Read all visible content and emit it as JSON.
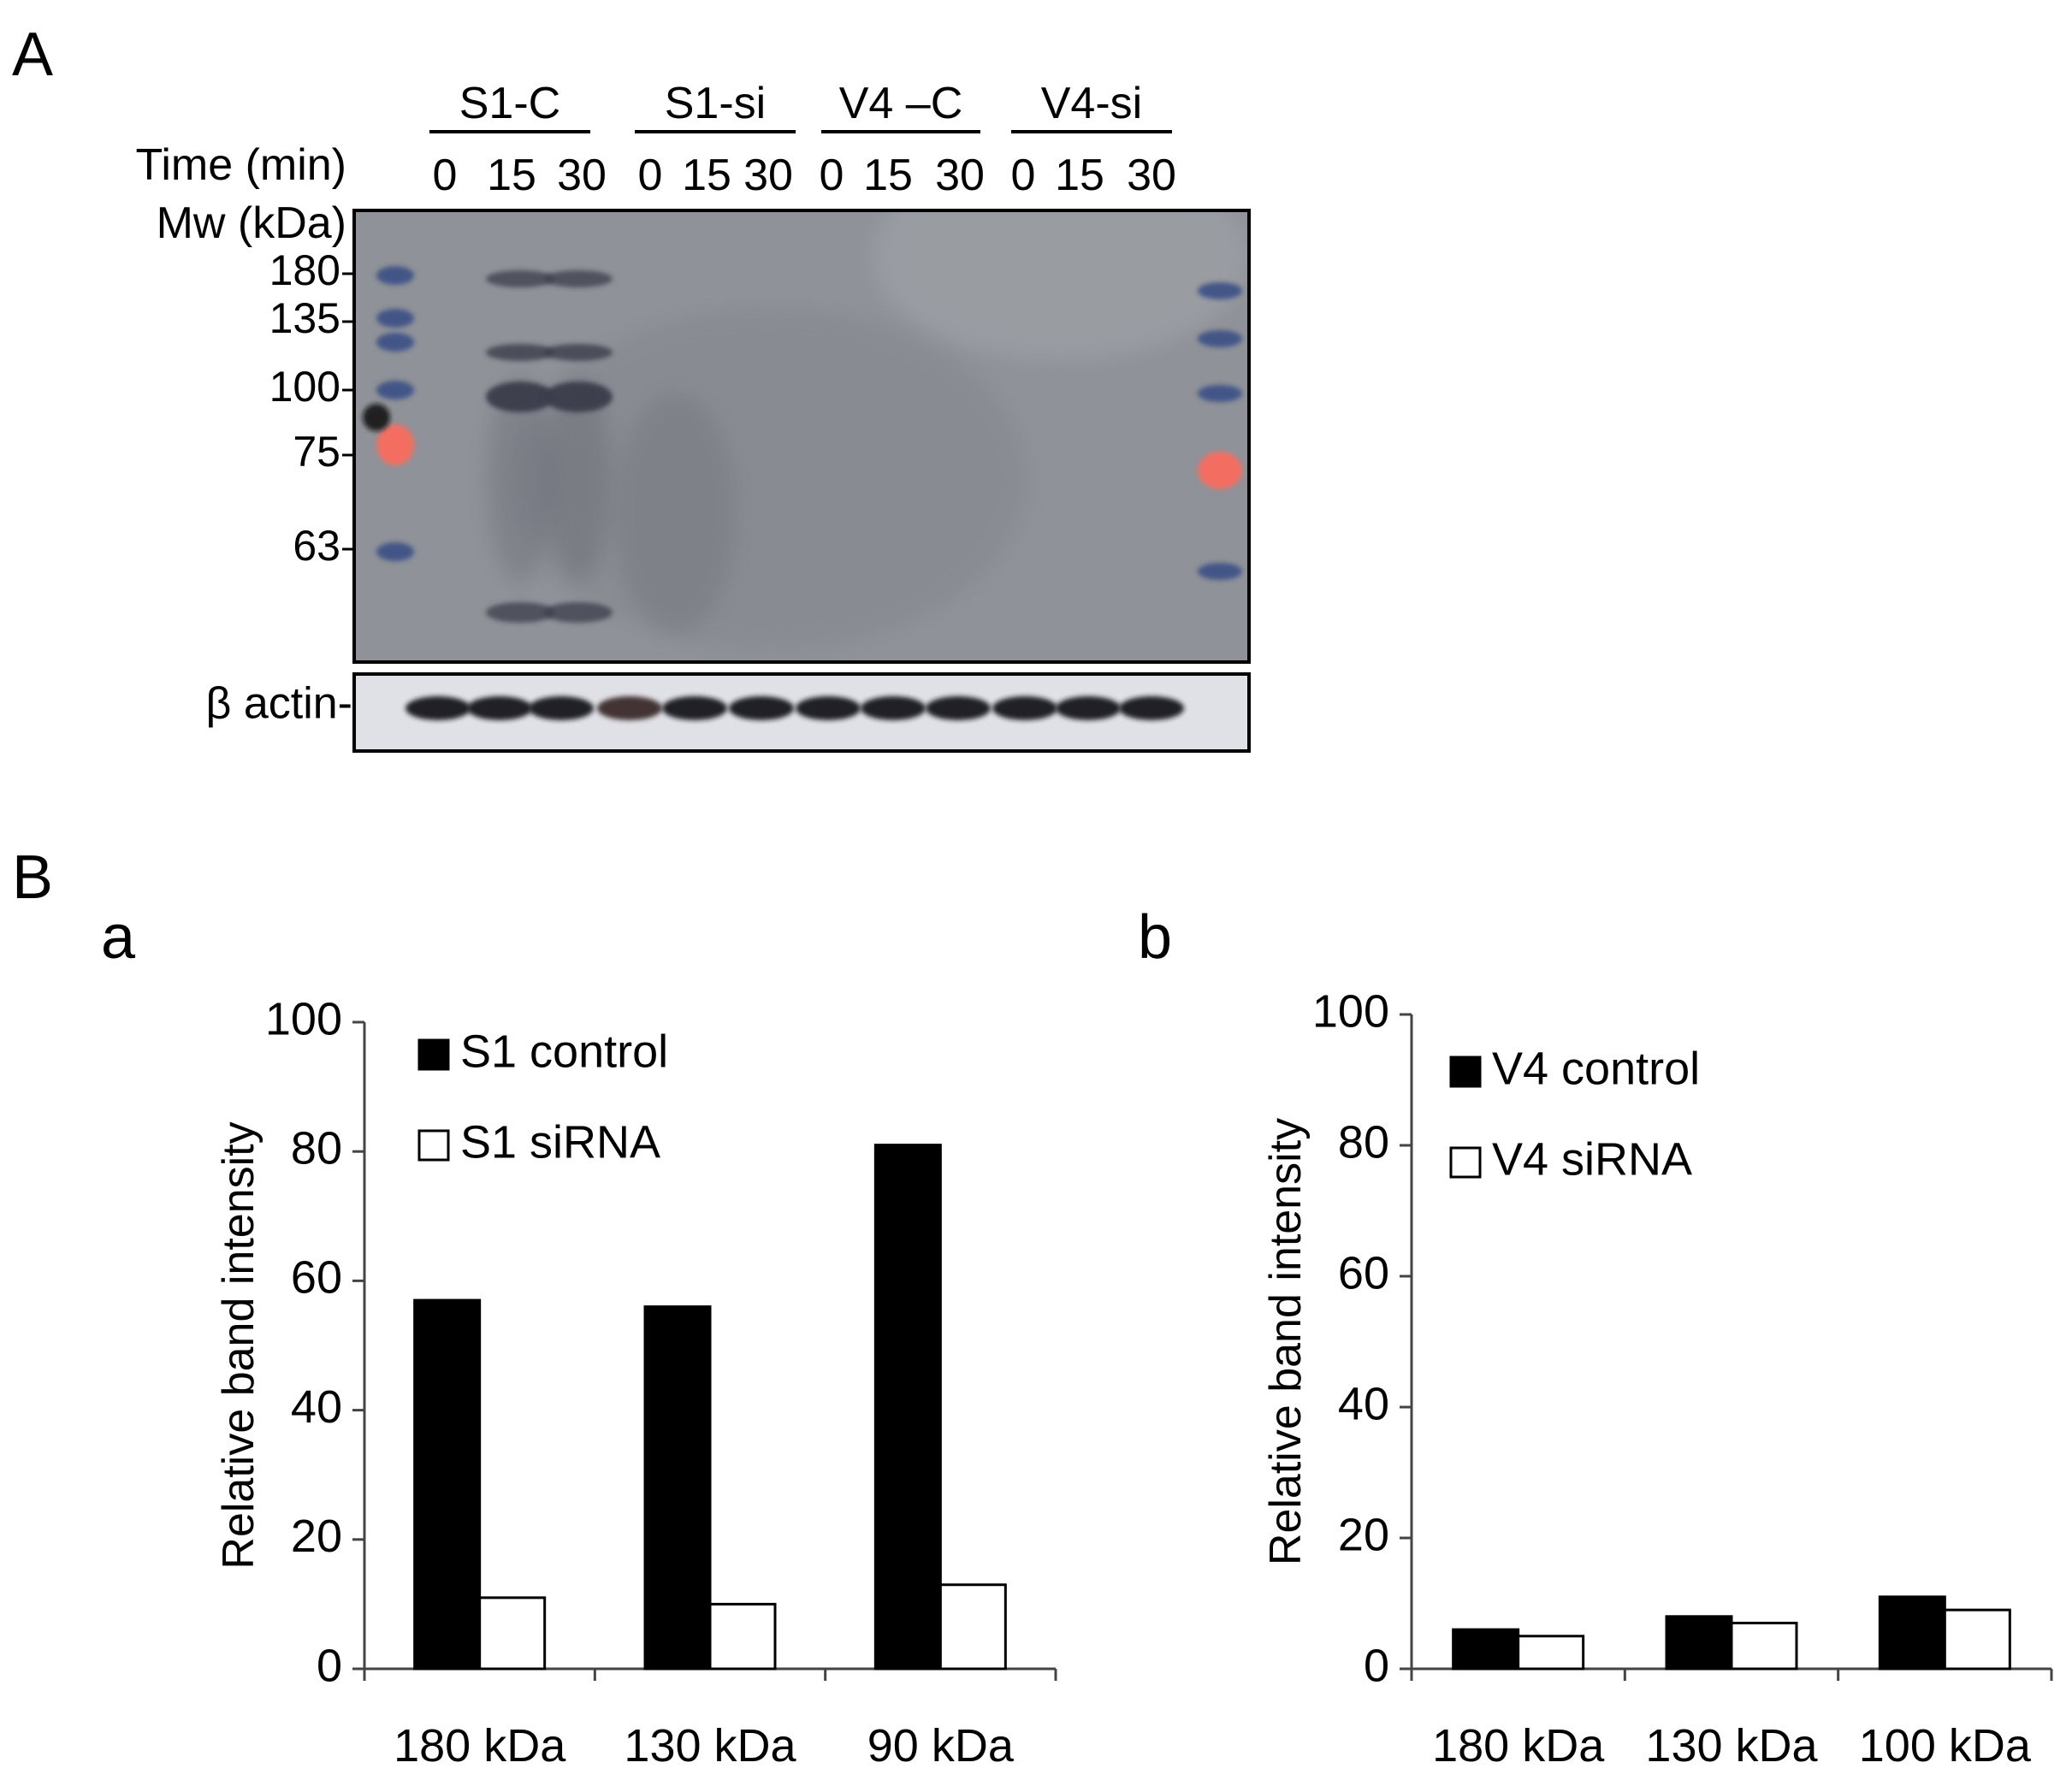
{
  "panels": {
    "A": "A",
    "B": "B",
    "a": "a",
    "b": "b"
  },
  "blot": {
    "time_label": "Time (min)",
    "mw_label": "Mw (kDa)",
    "groups": [
      "S1-C",
      "S1-si",
      "V4 –C",
      "V4-si"
    ],
    "times": [
      "0",
      "15",
      "30",
      "0",
      "15",
      "30",
      "0",
      "15",
      "30",
      "0",
      "15",
      "30"
    ],
    "markers": [
      "180",
      "135",
      "100",
      "75",
      "63"
    ],
    "actin_label": "β actin-",
    "colors": {
      "membrane": "#8f9298",
      "band": "#3a3d4c",
      "ladder_blue": "#3b4f86",
      "ladder_red": "#ff6a5c",
      "actin_band": "#15161a"
    }
  },
  "chart_data": [
    {
      "type": "bar",
      "panel": "a",
      "categories": [
        "180 kDa",
        "130 kDa",
        "90 kDa"
      ],
      "series": [
        {
          "name": "S1 control",
          "values": [
            57,
            56,
            81
          ],
          "color": "#000000"
        },
        {
          "name": "S1 siRNA",
          "values": [
            11,
            10,
            13
          ],
          "color": "#ffffff"
        }
      ],
      "title": "",
      "xlabel": "",
      "ylabel": "Relative band intensity",
      "ylim": [
        0,
        100
      ],
      "yticks": [
        0,
        20,
        40,
        60,
        80,
        100
      ],
      "grid": false,
      "legend": "top-left"
    },
    {
      "type": "bar",
      "panel": "b",
      "categories": [
        "180 kDa",
        "130 kDa",
        "100 kDa"
      ],
      "series": [
        {
          "name": "V4 control",
          "values": [
            6,
            8,
            11
          ],
          "color": "#000000"
        },
        {
          "name": "V4 siRNA",
          "values": [
            5,
            7,
            9
          ],
          "color": "#ffffff"
        }
      ],
      "title": "",
      "xlabel": "",
      "ylabel": "Relative band intensity",
      "ylim": [
        0,
        100
      ],
      "yticks": [
        0,
        20,
        40,
        60,
        80,
        100
      ],
      "grid": false,
      "legend": "top-left"
    }
  ]
}
